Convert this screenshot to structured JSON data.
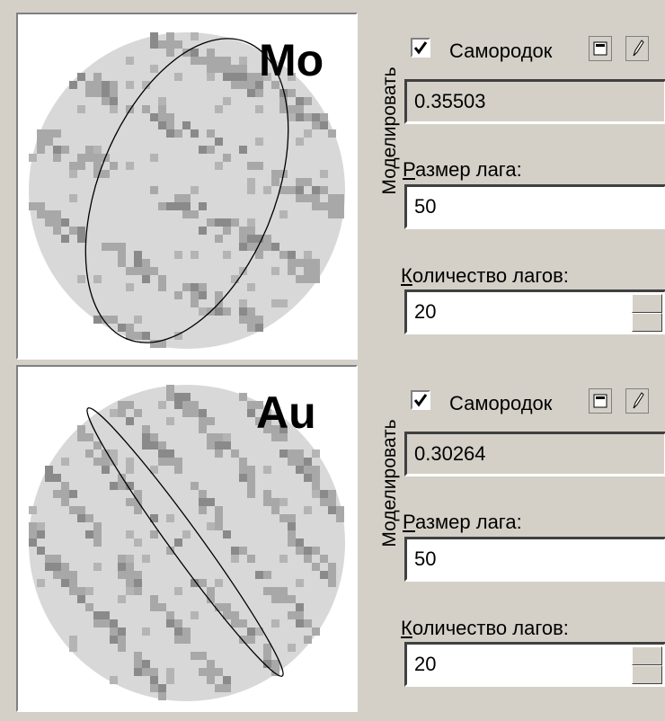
{
  "panels": [
    {
      "element": "Mo",
      "model_label": "Моделировать",
      "nugget_label": "Самородок",
      "nugget_value": "0.35503",
      "lag_size_label": "Размер лага:",
      "lag_size": "50",
      "lag_count_label": "Количество лагов:",
      "lag_count": "20"
    },
    {
      "element": "Au",
      "model_label": "Моделировать",
      "nugget_label": "Самородок",
      "nugget_value": "0.30264",
      "lag_size_label": "Размер лага:",
      "lag_size": "50",
      "lag_count_label": "Количество лагов:",
      "lag_count": "20"
    }
  ]
}
